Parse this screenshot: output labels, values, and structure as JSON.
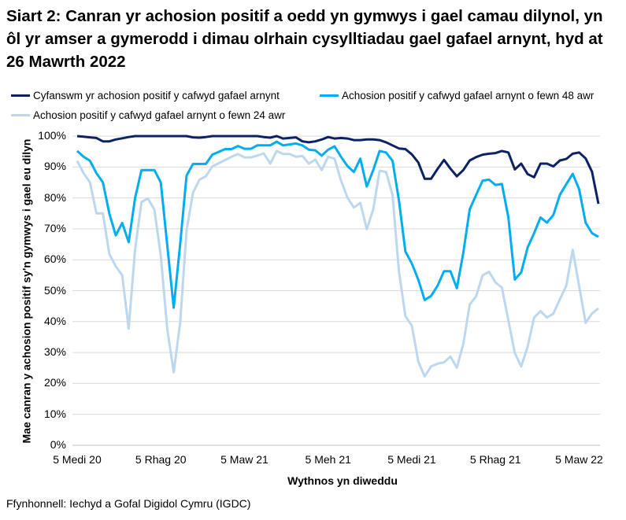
{
  "chart_data": {
    "type": "line",
    "title": "Siart 2: Canran yr achosion positif a oedd yn gymwys i gael camau dilynol, yn ôl yr amser a gymerodd i dimau olrhain cysylltiadau gael gafael arnynt, hyd at 26 Mawrth 2022",
    "xlabel": "Wythnos yn diweddu",
    "ylabel": "Mae canran y achosion positif sy'n gymwys i gael eu dilyn",
    "source": "Ffynhonnell: Iechyd a Gofal Digidol Cymru (IGDC)",
    "ylim": [
      0,
      100
    ],
    "yticks": [
      "0%",
      "10%",
      "20%",
      "30%",
      "40%",
      "50%",
      "60%",
      "70%",
      "80%",
      "90%",
      "100%"
    ],
    "xtick_labels": [
      "5 Medi 20",
      "5 Rhag 20",
      "5 Maw 21",
      "5 Meh 21",
      "5 Medi 21",
      "5 Rhag 21",
      "5 Maw 22"
    ],
    "grid": true,
    "legend_position": "top",
    "x": [
      "2020-09-05",
      "2020-09-12",
      "2020-09-19",
      "2020-09-26",
      "2020-10-03",
      "2020-10-10",
      "2020-10-17",
      "2020-10-24",
      "2020-10-31",
      "2020-11-07",
      "2020-11-14",
      "2020-11-21",
      "2020-11-28",
      "2020-12-05",
      "2020-12-12",
      "2020-12-19",
      "2020-12-26",
      "2021-01-02",
      "2021-01-09",
      "2021-01-16",
      "2021-01-23",
      "2021-01-30",
      "2021-02-06",
      "2021-02-13",
      "2021-02-20",
      "2021-02-27",
      "2021-03-06",
      "2021-03-13",
      "2021-03-20",
      "2021-03-27",
      "2021-04-03",
      "2021-04-10",
      "2021-04-17",
      "2021-04-24",
      "2021-05-01",
      "2021-05-08",
      "2021-05-15",
      "2021-05-22",
      "2021-05-29",
      "2021-06-05",
      "2021-06-12",
      "2021-06-19",
      "2021-06-26",
      "2021-07-03",
      "2021-07-10",
      "2021-07-17",
      "2021-07-24",
      "2021-07-31",
      "2021-08-07",
      "2021-08-14",
      "2021-08-21",
      "2021-08-28",
      "2021-09-04",
      "2021-09-11",
      "2021-09-18",
      "2021-09-25",
      "2021-10-02",
      "2021-10-09",
      "2021-10-16",
      "2021-10-23",
      "2021-10-30",
      "2021-11-06",
      "2021-11-13",
      "2021-11-20",
      "2021-11-27",
      "2021-12-04",
      "2021-12-11",
      "2021-12-18",
      "2021-12-25",
      "2022-01-01",
      "2022-01-08",
      "2022-01-15",
      "2022-01-22",
      "2022-01-29",
      "2022-02-05",
      "2022-02-12",
      "2022-02-19",
      "2022-02-26",
      "2022-03-05",
      "2022-03-12",
      "2022-03-19",
      "2022-03-26"
    ],
    "series": [
      {
        "name": "Cyfanswm yr achosion positif y cafwyd gafael arnynt",
        "color": "#0c2262",
        "values": [
          100,
          99.8,
          99.6,
          99.4,
          98.3,
          98.3,
          98.9,
          99.3,
          99.7,
          100,
          100,
          100,
          100,
          100,
          100,
          100,
          100,
          100,
          99.6,
          99.5,
          99.7,
          100,
          100,
          100,
          100,
          100,
          100,
          100,
          100,
          99.7,
          99.5,
          100,
          99.2,
          99.4,
          99.6,
          98.3,
          98,
          98.3,
          98.9,
          99.7,
          99.2,
          99.4,
          99.2,
          98.7,
          98.7,
          98.9,
          98.9,
          98.7,
          98,
          97,
          96,
          95.8,
          94.1,
          91.5,
          86.2,
          86.2,
          89.4,
          92.3,
          89.5,
          87,
          89,
          92.1,
          93.2,
          94,
          94.3,
          94.5,
          95.2,
          94.7,
          89.2,
          91.1,
          87.7,
          86.7,
          91.1,
          91.1,
          90.2,
          92.1,
          92.6,
          94.3,
          94.7,
          92.8,
          88.5,
          78.1
        ]
      },
      {
        "name": "Achosion positif y cafwyd gafael arnynt o fewn 48 awr",
        "color": "#00aeef",
        "values": [
          95.2,
          93.3,
          92,
          88,
          85,
          74.9,
          67.9,
          71.9,
          65.7,
          80,
          89,
          89,
          89,
          85,
          64.7,
          44.5,
          65,
          87.2,
          91,
          91,
          91,
          94,
          94.9,
          95.8,
          95.8,
          96.8,
          95.9,
          95.9,
          97,
          97,
          97,
          98.2,
          97,
          97.3,
          97.6,
          97,
          95.6,
          95.4,
          93.7,
          95.6,
          96.7,
          93.3,
          90.3,
          88.4,
          92.7,
          83.7,
          89,
          95.2,
          94.7,
          92,
          79.3,
          62.7,
          58.8,
          53.6,
          47,
          48.3,
          51.6,
          56.3,
          56.3,
          50.8,
          62.3,
          76.3,
          81,
          85.6,
          85.9,
          84.2,
          84.5,
          73.7,
          53.6,
          55.9,
          64,
          68.6,
          73.7,
          72,
          74.5,
          81,
          84.4,
          87.8,
          82.8,
          72,
          68.6,
          67.4
        ]
      },
      {
        "name": "Achosion positif y cafwyd gafael arnynt o fewn 24 awr",
        "color": "#bdd7ee",
        "values": [
          92,
          88,
          85,
          75,
          75,
          61.8,
          57.9,
          55,
          37.7,
          63.4,
          78.7,
          79.8,
          76.2,
          61.3,
          37.6,
          23.6,
          39.7,
          69.4,
          81.7,
          85.9,
          87,
          90.2,
          91.2,
          92.3,
          93.3,
          94.2,
          93.1,
          93.1,
          93.7,
          94.4,
          91.1,
          95.2,
          94.2,
          94.2,
          93.3,
          93.6,
          91.1,
          92.4,
          89,
          93.3,
          92.7,
          85.6,
          80.1,
          76.9,
          78.4,
          69.9,
          76.3,
          88.8,
          88.4,
          81,
          56.4,
          41.8,
          38.7,
          27.1,
          22.3,
          25.5,
          26.4,
          26.8,
          28.7,
          25.1,
          32.8,
          45.5,
          48.2,
          55,
          56.1,
          52.7,
          51,
          40.4,
          29.8,
          25.5,
          31.9,
          41.3,
          43.4,
          41.3,
          42.6,
          47.2,
          51.6,
          63.2,
          51.5,
          39.6,
          42.6,
          44.3
        ]
      }
    ]
  }
}
